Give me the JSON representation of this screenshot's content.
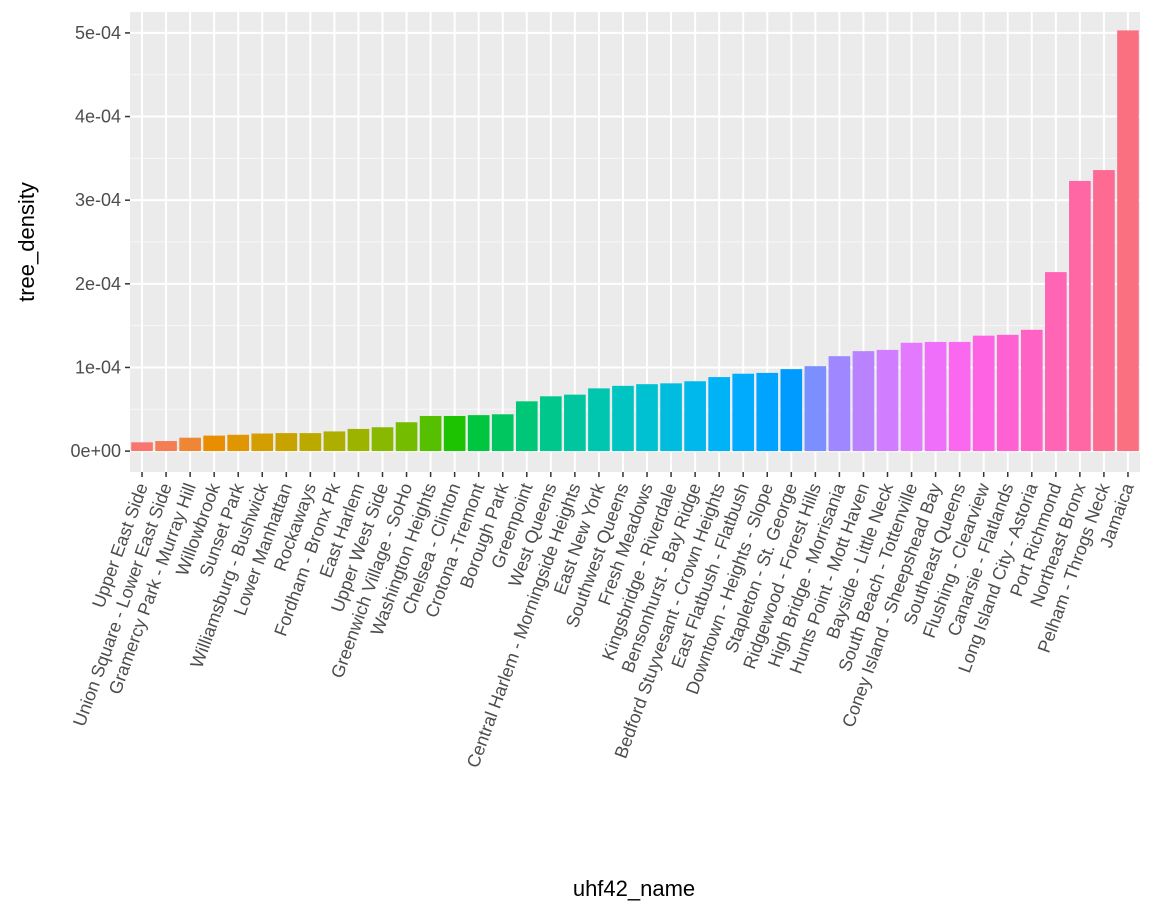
{
  "chart_data": {
    "type": "bar",
    "xlabel": "uhf42_name",
    "ylabel": "tree_density",
    "ylim": [
      -2.5e-05,
      0.000525
    ],
    "y_ticks": [
      0,
      0.0001,
      0.0002,
      0.0003,
      0.0004,
      0.0005
    ],
    "y_tick_labels": [
      "0e+00",
      "1e-04",
      "2e-04",
      "3e-04",
      "4e-04",
      "5e-04"
    ],
    "grid": true,
    "legend": "none",
    "categories": [
      "Upper East Side",
      "Union Square - Lower East Side",
      "Gramercy Park - Murray Hill",
      "Willowbrook",
      "Sunset Park",
      "Williamsburg - Bushwick",
      "Lower Manhattan",
      "Rockaways",
      "Fordham - Bronx Pk",
      "East Harlem",
      "Upper West Side",
      "Greenwich Village - SoHo",
      "Washington Heights",
      "Chelsea - Clinton",
      "Crotona -Tremont",
      "Borough Park",
      "Greenpoint",
      "West Queens",
      "Central Harlem - Morningside Heights",
      "East New York",
      "Southwest Queens",
      "Fresh Meadows",
      "Kingsbridge - Riverdale",
      "Bensonhurst - Bay Ridge",
      "Bedford Stuyvesant - Crown Heights",
      "East Flatbush - Flatbush",
      "Downtown - Heights - Slope",
      "Stapleton - St. George",
      "Ridgewood - Forest Hills",
      "High Bridge - Morrisania",
      "Hunts Point - Mott Haven",
      "Bayside - Little Neck",
      "South Beach - Tottenville",
      "Coney Island - Sheepshead Bay",
      "Southeast Queens",
      "Flushing - Clearview",
      "Canarsie - Flatlands",
      "Long Island City - Astoria",
      "Port Richmond",
      "Northeast Bronx",
      "Pelham - Throgs Neck",
      "Jamaica"
    ],
    "values": [
      1.05e-05,
      1.2e-05,
      1.6e-05,
      1.85e-05,
      1.95e-05,
      2.1e-05,
      2.15e-05,
      2.15e-05,
      2.35e-05,
      2.65e-05,
      2.85e-05,
      3.45e-05,
      4.2e-05,
      4.2e-05,
      4.3e-05,
      4.4e-05,
      5.95e-05,
      6.55e-05,
      6.75e-05,
      7.5e-05,
      7.8e-05,
      8e-05,
      8.1e-05,
      8.35e-05,
      8.85e-05,
      9.25e-05,
      9.35e-05,
      9.8e-05,
      0.0001015,
      0.0001135,
      0.0001195,
      0.000121,
      0.0001295,
      0.0001305,
      0.0001305,
      0.000138,
      0.000139,
      0.000145,
      0.000214,
      0.000323,
      0.000336,
      0.000503
    ],
    "colors": [
      "#F8766D",
      "#F47E53",
      "#EF8636",
      "#E88E00",
      "#DF9600",
      "#D49D00",
      "#C8A300",
      "#BBA900",
      "#ADAE00",
      "#9CB300",
      "#89B800",
      "#73BC00",
      "#55BF00",
      "#1DC200",
      "#00C53E",
      "#00C65F",
      "#00C777",
      "#00C78C",
      "#00C69F",
      "#00C6B0",
      "#00C4C1",
      "#00C1D1",
      "#00BDDF",
      "#00B8EB",
      "#00B2F6",
      "#00ABFD",
      "#00A4FF",
      "#009BFF",
      "#7B8FFF",
      "#9E87FF",
      "#B983FF",
      "#D07EFF",
      "#E279FF",
      "#EF6FFA",
      "#F968EF",
      "#FE63E3",
      "#FF61D5",
      "#FF62C5",
      "#FF64B5",
      "#FF67A4",
      "#FD6B93",
      "#FA7081"
    ]
  }
}
